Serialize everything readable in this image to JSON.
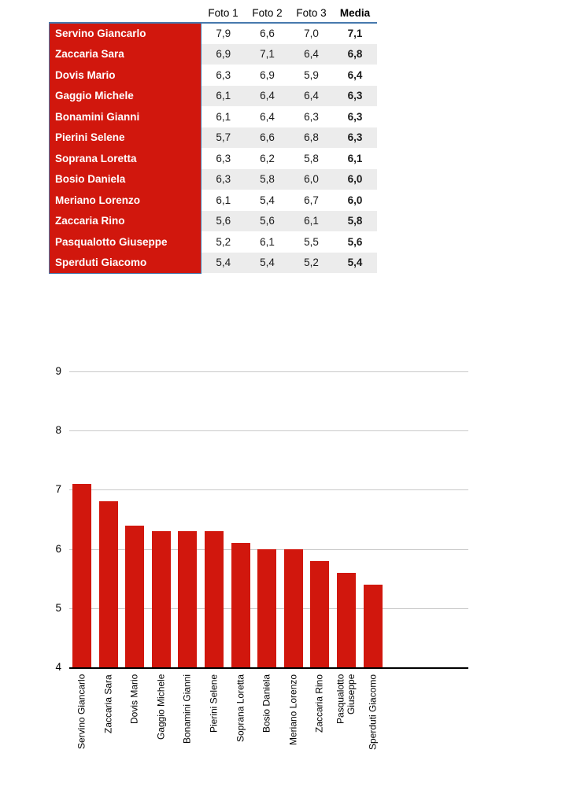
{
  "table": {
    "corner_label": "",
    "headers": [
      "Foto 1",
      "Foto 2",
      "Foto 3",
      "Media"
    ],
    "rows": [
      {
        "name": "Servino Giancarlo",
        "scores": [
          "7,9",
          "6,6",
          "7,0"
        ],
        "media": "7,1"
      },
      {
        "name": "Zaccaria Sara",
        "scores": [
          "6,9",
          "7,1",
          "6,4"
        ],
        "media": "6,8"
      },
      {
        "name": "Dovis Mario",
        "scores": [
          "6,3",
          "6,9",
          "5,9"
        ],
        "media": "6,4"
      },
      {
        "name": "Gaggio Michele",
        "scores": [
          "6,1",
          "6,4",
          "6,4"
        ],
        "media": "6,3"
      },
      {
        "name": "Bonamini Gianni",
        "scores": [
          "6,1",
          "6,4",
          "6,3"
        ],
        "media": "6,3"
      },
      {
        "name": "Pierini Selene",
        "scores": [
          "5,7",
          "6,6",
          "6,8"
        ],
        "media": "6,3"
      },
      {
        "name": "Soprana Loretta",
        "scores": [
          "6,3",
          "6,2",
          "5,8"
        ],
        "media": "6,1"
      },
      {
        "name": "Bosio Daniela",
        "scores": [
          "6,3",
          "5,8",
          "6,0"
        ],
        "media": "6,0"
      },
      {
        "name": "Meriano Lorenzo",
        "scores": [
          "6,1",
          "5,4",
          "6,7"
        ],
        "media": "6,0"
      },
      {
        "name": "Zaccaria Rino",
        "scores": [
          "5,6",
          "5,6",
          "6,1"
        ],
        "media": "5,8"
      },
      {
        "name": "Pasqualotto Giuseppe",
        "scores": [
          "5,2",
          "6,1",
          "5,5"
        ],
        "media": "5,6"
      },
      {
        "name": "Sperduti Giacomo",
        "scores": [
          "5,4",
          "5,4",
          "5,2"
        ],
        "media": "5,4"
      }
    ]
  },
  "chart_data": {
    "type": "bar",
    "title": "",
    "series_name": "Media",
    "categories": [
      "Servino Giancarlo",
      "Zaccaria Sara",
      "Dovis Mario",
      "Gaggio Michele",
      "Bonamini Gianni",
      "Pierini Selene",
      "Soprana Loretta",
      "Bosio Daniela",
      "Meriano Lorenzo",
      "Zaccaria Rino",
      "Pasqualotto Giuseppe",
      "Sperduti Giacomo"
    ],
    "xtick_labels": [
      "Servino Giancarlo",
      "Zaccaria Sara",
      "Dovis Mario",
      "Gaggio Michele",
      "Bonamini Gianni",
      "Pierini Selene",
      "Soprana Loretta",
      "Bosio Daniela",
      "Meriano Lorenzo",
      "Zaccaria Rino",
      "Pasqualotto\nGiuseppe",
      "Sperduti Giacomo"
    ],
    "values": [
      7.1,
      6.8,
      6.4,
      6.3,
      6.3,
      6.3,
      6.1,
      6.0,
      6.0,
      5.8,
      5.6,
      5.4
    ],
    "xlabel": "",
    "ylabel": "",
    "ylim": [
      4,
      9.5
    ],
    "yticks": [
      4,
      5,
      6,
      7,
      8,
      9
    ],
    "grid": "horizontal",
    "legend": "none",
    "bar_color": "#d1170d"
  },
  "colors": {
    "name_cell_bg": "#d1170d",
    "name_cell_text": "#ffffff",
    "header_rule": "#4779ad",
    "alt_row_bg": "#ececec",
    "bar": "#d1170d",
    "gridline": "#c9c9c9",
    "axis": "#000000"
  }
}
